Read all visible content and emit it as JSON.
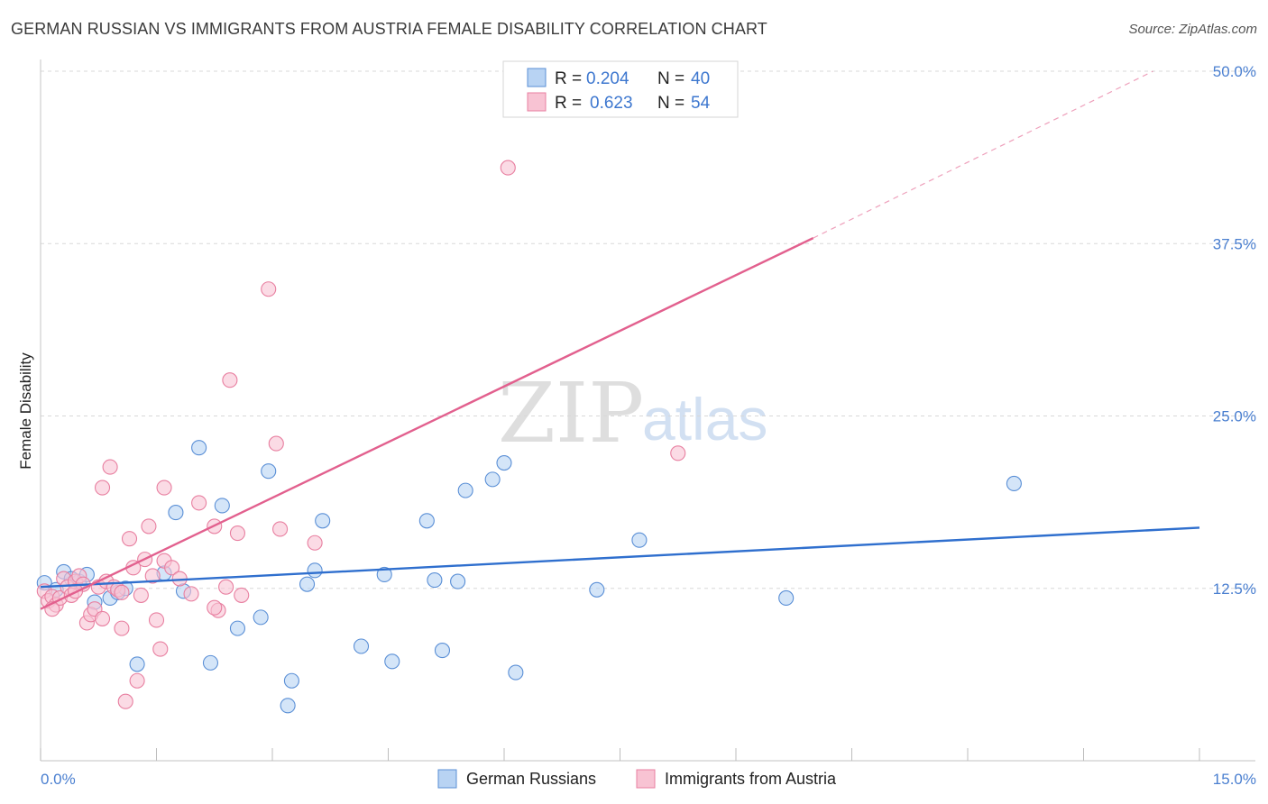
{
  "header": {
    "title": "GERMAN RUSSIAN VS IMMIGRANTS FROM AUSTRIA FEMALE DISABILITY CORRELATION CHART",
    "source": "Source: ZipAtlas.com"
  },
  "watermark": {
    "zip": "ZIP",
    "atlas": "atlas"
  },
  "legend": {
    "rows": [
      {
        "r_label": "R =",
        "r_value": "0.204",
        "n_label": "N =",
        "n_value": "40"
      },
      {
        "r_label": "R =",
        "r_value": "0.623",
        "n_label": "N =",
        "n_value": "54"
      }
    ]
  },
  "bottom_legend": [
    "German Russians",
    "Immigrants from Austria"
  ],
  "colors": {
    "blue_fill": "#b8d3f3",
    "blue_stroke": "#5a8fd6",
    "blue_line": "#2f6fce",
    "pink_fill": "#f8c3d3",
    "pink_stroke": "#e87fa0",
    "pink_line": "#e2608e",
    "grid": "#d8d8d8",
    "axis_text": "#4a7fd0"
  },
  "chart_data": {
    "type": "scatter",
    "title": "GERMAN RUSSIAN VS IMMIGRANTS FROM AUSTRIA FEMALE DISABILITY CORRELATION CHART",
    "xlabel": "",
    "ylabel": "Female Disability",
    "xlim": [
      0,
      15
    ],
    "ylim": [
      0,
      50
    ],
    "x_tick_labels": [
      "0.0%",
      "15.0%"
    ],
    "y_ticks": [
      12.5,
      25.0,
      37.5,
      50.0
    ],
    "y_tick_labels": [
      "12.5%",
      "25.0%",
      "37.5%",
      "50.0%"
    ],
    "series": [
      {
        "name": "German Russians",
        "R": 0.204,
        "N": 40,
        "trend": {
          "x": [
            0,
            15
          ],
          "y": [
            12.6,
            16.9
          ],
          "dashed_x": null
        },
        "points": [
          [
            0.05,
            12.9
          ],
          [
            0.2,
            12.4
          ],
          [
            0.3,
            13.7
          ],
          [
            0.5,
            13.0
          ],
          [
            0.6,
            13.5
          ],
          [
            0.7,
            11.5
          ],
          [
            0.9,
            11.8
          ],
          [
            1.0,
            12.2
          ],
          [
            1.1,
            12.5
          ],
          [
            1.25,
            7.0
          ],
          [
            1.6,
            13.6
          ],
          [
            1.75,
            18.0
          ],
          [
            1.85,
            12.3
          ],
          [
            2.05,
            22.7
          ],
          [
            2.2,
            7.1
          ],
          [
            2.35,
            18.5
          ],
          [
            2.55,
            9.6
          ],
          [
            2.85,
            10.4
          ],
          [
            2.95,
            21.0
          ],
          [
            3.2,
            4.0
          ],
          [
            3.25,
            5.8
          ],
          [
            3.45,
            12.8
          ],
          [
            3.55,
            13.8
          ],
          [
            3.65,
            17.4
          ],
          [
            4.15,
            8.3
          ],
          [
            4.45,
            13.5
          ],
          [
            4.55,
            7.2
          ],
          [
            5.0,
            17.4
          ],
          [
            5.1,
            13.1
          ],
          [
            5.2,
            8.0
          ],
          [
            5.4,
            13.0
          ],
          [
            5.5,
            19.6
          ],
          [
            5.85,
            20.4
          ],
          [
            6.0,
            21.6
          ],
          [
            6.15,
            6.4
          ],
          [
            7.2,
            12.4
          ],
          [
            7.75,
            16.0
          ],
          [
            9.65,
            11.8
          ],
          [
            12.6,
            20.1
          ],
          [
            0.4,
            13.2
          ]
        ]
      },
      {
        "name": "Immigrants from Austria",
        "R": 0.623,
        "N": 54,
        "trend": {
          "x": [
            0,
            10.0
          ],
          "y": [
            11.0,
            37.9
          ],
          "dashed_x": [
            10.0,
            14.4
          ],
          "dashed_y": [
            37.9,
            50.0
          ]
        },
        "points": [
          [
            0.05,
            12.3
          ],
          [
            0.1,
            11.6
          ],
          [
            0.15,
            11.9
          ],
          [
            0.2,
            11.3
          ],
          [
            0.25,
            11.8
          ],
          [
            0.3,
            13.2
          ],
          [
            0.35,
            12.6
          ],
          [
            0.4,
            12.0
          ],
          [
            0.45,
            13.0
          ],
          [
            0.5,
            13.4
          ],
          [
            0.55,
            12.8
          ],
          [
            0.6,
            10.0
          ],
          [
            0.65,
            10.6
          ],
          [
            0.7,
            11.0
          ],
          [
            0.75,
            12.6
          ],
          [
            0.8,
            19.8
          ],
          [
            0.8,
            10.3
          ],
          [
            0.85,
            13.0
          ],
          [
            0.9,
            21.3
          ],
          [
            0.95,
            12.6
          ],
          [
            1.0,
            12.4
          ],
          [
            1.05,
            9.6
          ],
          [
            1.1,
            4.3
          ],
          [
            1.15,
            16.1
          ],
          [
            1.2,
            14.0
          ],
          [
            1.25,
            5.8
          ],
          [
            1.3,
            12.0
          ],
          [
            1.35,
            14.6
          ],
          [
            1.4,
            17.0
          ],
          [
            1.45,
            13.4
          ],
          [
            1.5,
            10.2
          ],
          [
            1.55,
            8.1
          ],
          [
            1.6,
            14.5
          ],
          [
            1.6,
            19.8
          ],
          [
            1.7,
            14.0
          ],
          [
            1.8,
            13.2
          ],
          [
            1.95,
            12.1
          ],
          [
            2.05,
            18.7
          ],
          [
            2.25,
            17.0
          ],
          [
            2.3,
            10.9
          ],
          [
            2.4,
            12.6
          ],
          [
            2.45,
            27.6
          ],
          [
            2.55,
            16.5
          ],
          [
            2.6,
            12.0
          ],
          [
            2.95,
            34.2
          ],
          [
            3.05,
            23.0
          ],
          [
            3.1,
            16.8
          ],
          [
            3.55,
            15.8
          ],
          [
            6.05,
            43.0
          ],
          [
            8.25,
            22.3
          ],
          [
            0.15,
            11.0
          ],
          [
            0.45,
            12.3
          ],
          [
            1.05,
            12.2
          ],
          [
            2.25,
            11.1
          ]
        ]
      }
    ]
  }
}
